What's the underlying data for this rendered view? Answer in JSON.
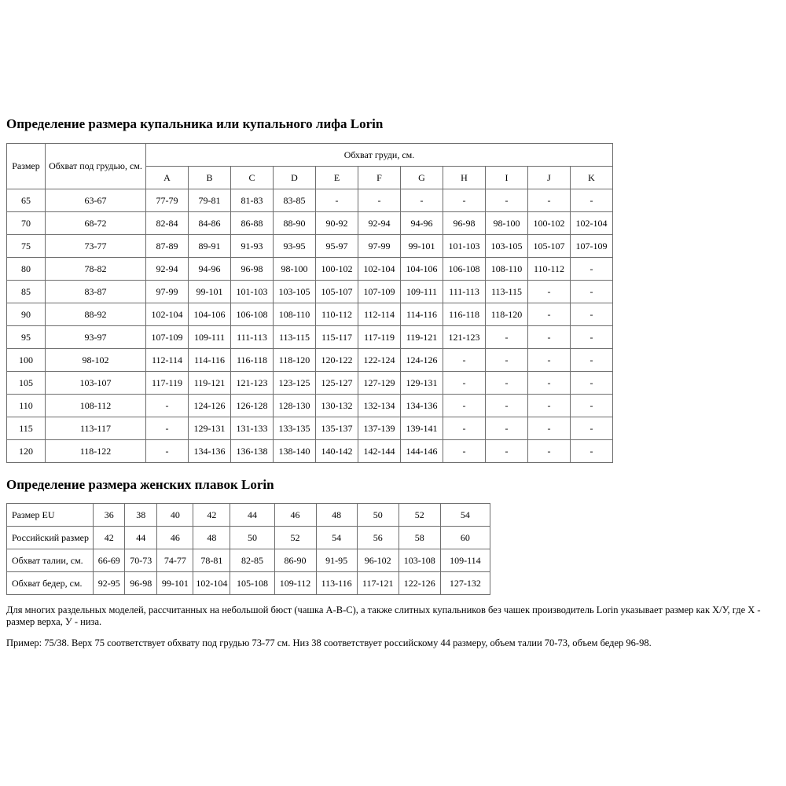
{
  "headings": {
    "bra": "Определение размера купальника или купального лифа Lorin",
    "briefs": "Определение размера женских плавок Lorin"
  },
  "bra_table": {
    "header": {
      "size": "Размер",
      "underbust": "Обхват под грудью, см.",
      "bust_group": "Обхват груди, см.",
      "cups": [
        "A",
        "B",
        "C",
        "D",
        "E",
        "F",
        "G",
        "H",
        "I",
        "J",
        "K"
      ]
    },
    "rows": [
      {
        "size": "65",
        "underbust": "63-67",
        "cups": [
          "77-79",
          "79-81",
          "81-83",
          "83-85",
          "-",
          "-",
          "-",
          "-",
          "-",
          "-",
          "-"
        ]
      },
      {
        "size": "70",
        "underbust": "68-72",
        "cups": [
          "82-84",
          "84-86",
          "86-88",
          "88-90",
          "90-92",
          "92-94",
          "94-96",
          "96-98",
          "98-100",
          "100-102",
          "102-104"
        ]
      },
      {
        "size": "75",
        "underbust": "73-77",
        "cups": [
          "87-89",
          "89-91",
          "91-93",
          "93-95",
          "95-97",
          "97-99",
          "99-101",
          "101-103",
          "103-105",
          "105-107",
          "107-109"
        ]
      },
      {
        "size": "80",
        "underbust": "78-82",
        "cups": [
          "92-94",
          "94-96",
          "96-98",
          "98-100",
          "100-102",
          "102-104",
          "104-106",
          "106-108",
          "108-110",
          "110-112",
          "-"
        ]
      },
      {
        "size": "85",
        "underbust": "83-87",
        "cups": [
          "97-99",
          "99-101",
          "101-103",
          "103-105",
          "105-107",
          "107-109",
          "109-111",
          "111-113",
          "113-115",
          "-",
          "-"
        ]
      },
      {
        "size": "90",
        "underbust": "88-92",
        "cups": [
          "102-104",
          "104-106",
          "106-108",
          "108-110",
          "110-112",
          "112-114",
          "114-116",
          "116-118",
          "118-120",
          "-",
          "-"
        ]
      },
      {
        "size": "95",
        "underbust": "93-97",
        "cups": [
          "107-109",
          "109-111",
          "111-113",
          "113-115",
          "115-117",
          "117-119",
          "119-121",
          "121-123",
          "-",
          "-",
          "-"
        ]
      },
      {
        "size": "100",
        "underbust": "98-102",
        "cups": [
          "112-114",
          "114-116",
          "116-118",
          "118-120",
          "120-122",
          "122-124",
          "124-126",
          "-",
          "-",
          "-",
          "-"
        ]
      },
      {
        "size": "105",
        "underbust": "103-107",
        "cups": [
          "117-119",
          "119-121",
          "121-123",
          "123-125",
          "125-127",
          "127-129",
          "129-131",
          "-",
          "-",
          "-",
          "-"
        ]
      },
      {
        "size": "110",
        "underbust": "108-112",
        "cups": [
          "-",
          "124-126",
          "126-128",
          "128-130",
          "130-132",
          "132-134",
          "134-136",
          "-",
          "-",
          "-",
          "-"
        ]
      },
      {
        "size": "115",
        "underbust": "113-117",
        "cups": [
          "-",
          "129-131",
          "131-133",
          "133-135",
          "135-137",
          "137-139",
          "139-141",
          "-",
          "-",
          "-",
          "-"
        ]
      },
      {
        "size": "120",
        "underbust": "118-122",
        "cups": [
          "-",
          "134-136",
          "136-138",
          "138-140",
          "140-142",
          "142-144",
          "144-146",
          "-",
          "-",
          "-",
          "-"
        ]
      }
    ]
  },
  "briefs_table": {
    "rows": [
      {
        "label": "Размер EU",
        "values": [
          "36",
          "38",
          "40",
          "42",
          "44",
          "46",
          "48",
          "50",
          "52",
          "54"
        ]
      },
      {
        "label": "Российский размер",
        "values": [
          "42",
          "44",
          "46",
          "48",
          "50",
          "52",
          "54",
          "56",
          "58",
          "60"
        ]
      },
      {
        "label": "Обхват талии, см.",
        "values": [
          "66-69",
          "70-73",
          "74-77",
          "78-81",
          "82-85",
          "86-90",
          "91-95",
          "96-102",
          "103-108",
          "109-114"
        ]
      },
      {
        "label": "Обхват бедер, см.",
        "values": [
          "92-95",
          "96-98",
          "99-101",
          "102-104",
          "105-108",
          "109-112",
          "113-116",
          "117-121",
          "122-126",
          "127-132"
        ]
      }
    ]
  },
  "notes": {
    "line1": "Для многих раздельных моделей, рассчитанных на небольшой бюст (чашка A-B-C), а также слитных купальников без чашек производитель Lorin указывает размер как Х/У, где Х - размер верха, У - низа.",
    "line2": "Пример: 75/38. Верх 75 соответствует обхвату под грудью 73-77 см. Низ 38 соответствует российскому 44 размеру, объем талии 70-73, объем бедер 96-98."
  }
}
